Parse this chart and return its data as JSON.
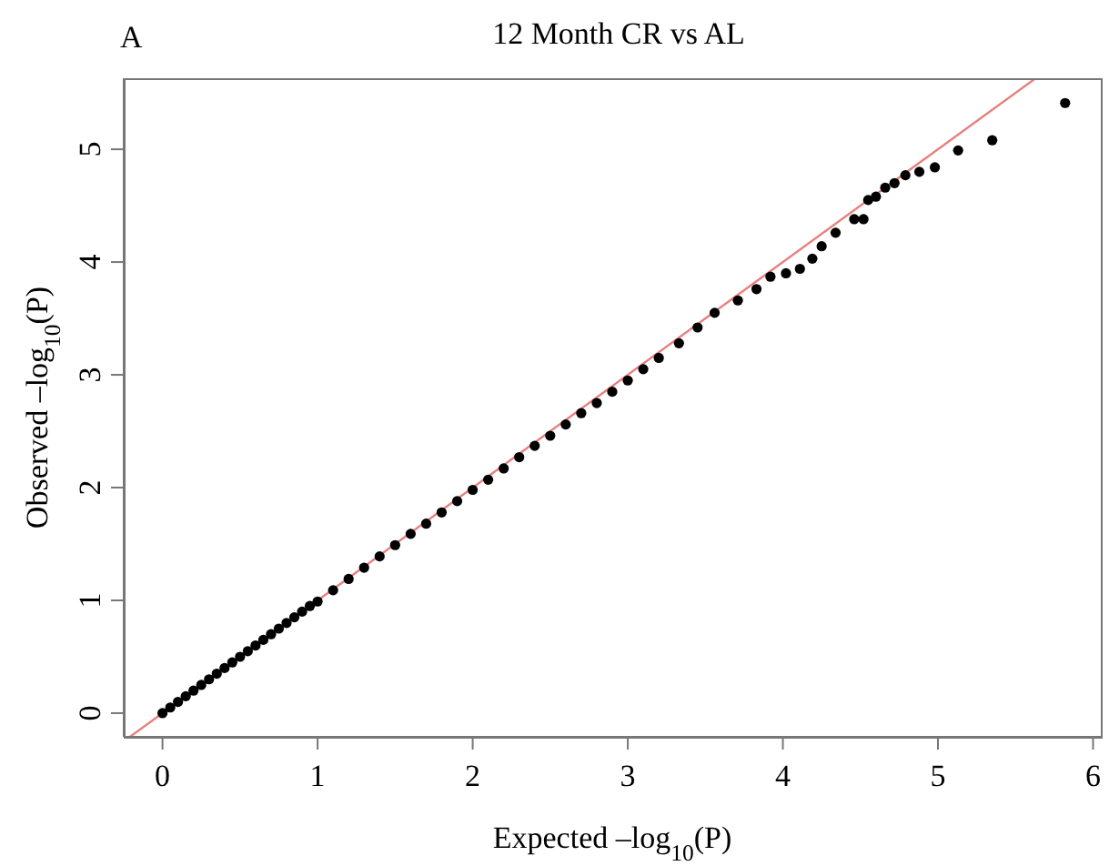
{
  "chart_data": {
    "type": "scatter",
    "title": "12 Month CR vs AL",
    "annotations": [
      "A"
    ],
    "xlabel": "Expected –log$_{10}$(P)",
    "ylabel": "Observed –log$_{10}$(P)",
    "xlim": [
      -0.25,
      6.05
    ],
    "xticks": [
      0,
      1,
      2,
      3,
      4,
      5,
      6
    ],
    "ylim": [
      -0.21,
      5.63
    ],
    "yticks": [
      0,
      1,
      2,
      3,
      4,
      5
    ],
    "series": [
      {
        "marker": "circle",
        "color": "#000000",
        "x": [
          0,
          0.05,
          0.1,
          0.15,
          0.2,
          0.25,
          0.3,
          0.35,
          0.4,
          0.45,
          0.5,
          0.55,
          0.6,
          0.65,
          0.7,
          0.75,
          0.8,
          0.85,
          0.9,
          0.95,
          1,
          1.1,
          1.2,
          1.3,
          1.4,
          1.5,
          1.6,
          1.7,
          1.8,
          1.9,
          2,
          2.1,
          2.2,
          2.3,
          2.4,
          2.5,
          2.6,
          2.7,
          2.8,
          2.9,
          3,
          3.1,
          3.2,
          3.33,
          3.45,
          3.56,
          3.71,
          3.83,
          3.92,
          4.02,
          4.11,
          4.19,
          4.25,
          4.34,
          4.46,
          4.52,
          4.55,
          4.6,
          4.66,
          4.72,
          4.79,
          4.88,
          4.98,
          5.13,
          5.35,
          5.82
        ],
        "values": [
          0,
          0.05,
          0.1,
          0.15,
          0.2,
          0.25,
          0.3,
          0.35,
          0.4,
          0.45,
          0.5,
          0.55,
          0.6,
          0.65,
          0.7,
          0.75,
          0.8,
          0.85,
          0.9,
          0.95,
          0.99,
          1.09,
          1.19,
          1.29,
          1.39,
          1.49,
          1.59,
          1.68,
          1.78,
          1.88,
          1.98,
          2.07,
          2.17,
          2.27,
          2.37,
          2.46,
          2.56,
          2.66,
          2.75,
          2.85,
          2.95,
          3.05,
          3.15,
          3.28,
          3.42,
          3.55,
          3.66,
          3.76,
          3.87,
          3.9,
          3.94,
          4.03,
          4.14,
          4.26,
          4.38,
          4.38,
          4.55,
          4.58,
          4.66,
          4.7,
          4.77,
          4.8,
          4.84,
          4.99,
          5.08,
          5.41
        ]
      },
      {
        "type": "line",
        "marker": "none",
        "color": "#e8807f",
        "x": [
          -0.21,
          5.63
        ],
        "values": [
          -0.21,
          5.63
        ]
      }
    ]
  }
}
